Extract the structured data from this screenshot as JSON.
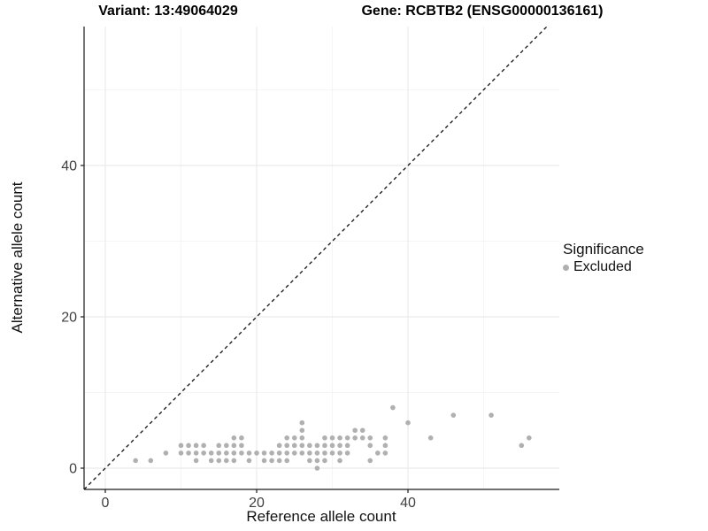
{
  "header": {
    "variant_title": "Variant: 13:49064029",
    "gene_title": "Gene: RCBTB2 (ENSG00000136161)"
  },
  "chart_data": {
    "type": "scatter",
    "xlabel": "Reference allele count",
    "ylabel": "Alternative allele count",
    "xlim": [
      -2.807,
      60.0
    ],
    "ylim": [
      -2.807,
      58.36
    ],
    "x_ticks": [
      0,
      20,
      40
    ],
    "y_ticks": [
      0,
      20,
      40
    ],
    "x_minor_ticks": [
      10,
      30,
      50
    ],
    "y_minor_ticks": [
      10,
      30,
      50
    ],
    "grid": true,
    "identity_line": {
      "style": "dashed",
      "from": [
        -2.807,
        -2.807
      ],
      "to": [
        58.36,
        58.36
      ]
    },
    "legend": {
      "title": "Significance",
      "position": "right",
      "entries": [
        {
          "label": "Excluded",
          "color": "#b0b0b0"
        }
      ]
    },
    "series": [
      {
        "name": "Excluded",
        "color": "#b0b0b0",
        "points": [
          [
            28,
            0
          ],
          [
            4,
            1
          ],
          [
            6,
            1
          ],
          [
            12,
            1
          ],
          [
            14,
            1
          ],
          [
            15,
            1
          ],
          [
            16,
            1
          ],
          [
            17,
            1
          ],
          [
            19,
            1
          ],
          [
            21,
            1
          ],
          [
            22,
            1
          ],
          [
            23,
            1
          ],
          [
            24,
            1
          ],
          [
            27,
            1
          ],
          [
            28,
            1
          ],
          [
            29,
            1
          ],
          [
            31,
            1
          ],
          [
            35,
            1
          ],
          [
            8,
            2
          ],
          [
            10,
            2
          ],
          [
            11,
            2
          ],
          [
            12,
            2
          ],
          [
            13,
            2
          ],
          [
            14,
            2
          ],
          [
            15,
            2
          ],
          [
            16,
            2
          ],
          [
            17,
            2
          ],
          [
            18,
            2
          ],
          [
            19,
            2
          ],
          [
            20,
            2
          ],
          [
            21,
            2
          ],
          [
            22,
            2
          ],
          [
            23,
            2
          ],
          [
            24,
            2
          ],
          [
            25,
            2
          ],
          [
            26,
            2
          ],
          [
            27,
            2
          ],
          [
            28,
            2
          ],
          [
            29,
            2
          ],
          [
            30,
            2
          ],
          [
            31,
            2
          ],
          [
            32,
            2
          ],
          [
            36,
            2
          ],
          [
            37,
            2
          ],
          [
            10,
            3
          ],
          [
            11,
            3
          ],
          [
            12,
            3
          ],
          [
            13,
            3
          ],
          [
            15,
            3
          ],
          [
            16,
            3
          ],
          [
            17,
            3
          ],
          [
            18,
            3
          ],
          [
            23,
            3
          ],
          [
            24,
            3
          ],
          [
            25,
            3
          ],
          [
            26,
            3
          ],
          [
            27,
            3
          ],
          [
            28,
            3
          ],
          [
            29,
            3
          ],
          [
            30,
            3
          ],
          [
            31,
            3
          ],
          [
            32,
            3
          ],
          [
            35,
            3
          ],
          [
            37,
            3
          ],
          [
            55,
            3
          ],
          [
            17,
            4
          ],
          [
            18,
            4
          ],
          [
            24,
            4
          ],
          [
            25,
            4
          ],
          [
            26,
            4
          ],
          [
            29,
            4
          ],
          [
            30,
            4
          ],
          [
            31,
            4
          ],
          [
            32,
            4
          ],
          [
            33,
            4
          ],
          [
            34,
            4
          ],
          [
            35,
            4
          ],
          [
            37,
            4
          ],
          [
            43,
            4
          ],
          [
            56,
            4
          ],
          [
            26,
            5
          ],
          [
            33,
            5
          ],
          [
            34,
            5
          ],
          [
            26,
            6
          ],
          [
            40,
            6
          ],
          [
            46,
            7
          ],
          [
            51,
            7
          ],
          [
            38,
            8
          ]
        ]
      }
    ]
  },
  "colors": {
    "point": "#b0b0b0",
    "grid_major": "#ebebeb",
    "grid_minor": "#f5f5f5",
    "axis_line": "#1a1a1a",
    "tick_text": "#404040",
    "identity_line": "#111111"
  }
}
